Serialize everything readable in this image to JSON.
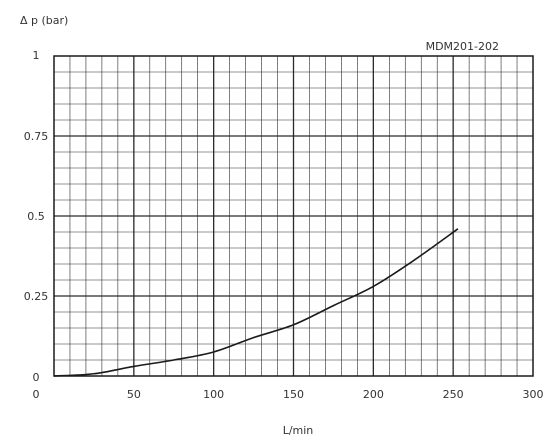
{
  "chart_data": {
    "type": "line",
    "title": "",
    "ylabel": "Δ p (bar)",
    "xlabel": "L/min",
    "annotation": "MDM201-202",
    "xlim": [
      0,
      300
    ],
    "ylim": [
      0,
      1
    ],
    "x_ticks": [
      0,
      50,
      100,
      150,
      200,
      250,
      300
    ],
    "y_ticks": [
      0,
      0.25,
      0.5,
      0.75,
      1
    ],
    "x_tick_labels": [
      "0",
      "50",
      "100",
      "150",
      "200",
      "250",
      "300"
    ],
    "y_tick_labels": [
      "0",
      "0.25",
      "0.5",
      "0.75",
      "1"
    ],
    "grid": true,
    "minor_grid_step": {
      "x": 10,
      "y": 0.05
    },
    "colors": {
      "grid": "#2a2a2a",
      "line": "#1a1a1a",
      "frame": "#1a1a1a"
    },
    "series": [
      {
        "x": [
          0,
          25,
          50,
          75,
          100,
          125,
          150,
          175,
          200,
          225,
          253
        ],
        "y": [
          0,
          0.007,
          0.03,
          0.05,
          0.075,
          0.12,
          0.16,
          0.22,
          0.28,
          0.36,
          0.46
        ]
      }
    ]
  }
}
